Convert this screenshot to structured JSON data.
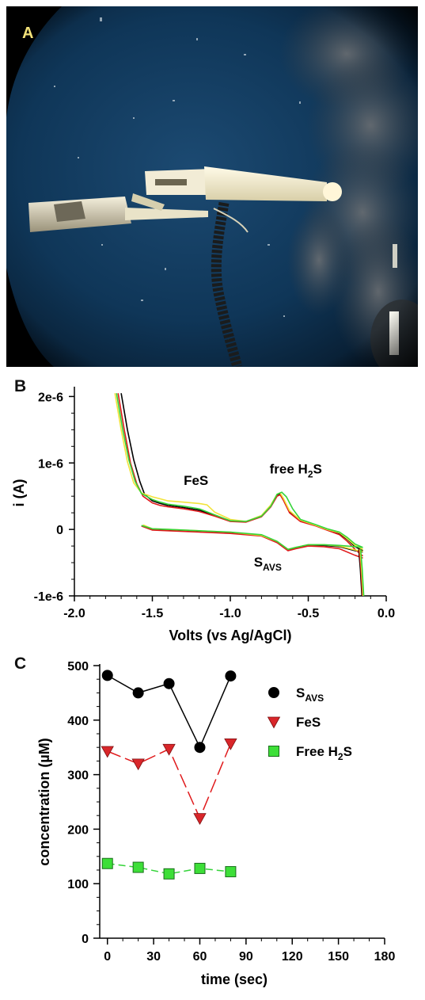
{
  "panels": {
    "a": {
      "letter": "A"
    },
    "b": {
      "letter": "B"
    },
    "c": {
      "letter": "C"
    }
  },
  "colors": {
    "ocean": "#0f3658",
    "ocean_dark": "#071a2c",
    "vignette": "#000000",
    "panel_a_letter": "#f3e27a",
    "black": "#000000",
    "red": "#e0191b",
    "yellow": "#f2e33a",
    "green": "#35d43a",
    "fes_marker": "#d9262a",
    "h2s_marker": "#3ddf38"
  },
  "chart_data": [
    {
      "id": "B",
      "type": "line",
      "xlabel": "Volts (vs Ag/AgCl)",
      "ylabel": "i (A)",
      "xlim": [
        -2.0,
        0.0
      ],
      "ylim": [
        -1e-06,
        2.1e-06
      ],
      "x_ticks": [
        -2.0,
        -1.5,
        -1.0,
        -0.5,
        0.0
      ],
      "x_tick_labels": [
        "-2.0",
        "-1.5",
        "-1.0",
        "-0.5",
        "0.0"
      ],
      "y_ticks": [
        -1e-06,
        0,
        1e-06,
        2e-06
      ],
      "y_tick_labels": [
        "-1e-6",
        "0",
        "1e-6",
        "2e-6"
      ],
      "grid": false,
      "legend": "none",
      "annotations": [
        {
          "text": "FeS",
          "x": -1.22,
          "y": 6.7e-07
        },
        {
          "text": "free H",
          "sub": "2",
          "tail": "S",
          "x": -0.58,
          "y": 8.4e-07
        },
        {
          "text": "S",
          "sub": "AVS",
          "x": -0.76,
          "y": -5.6e-07
        }
      ],
      "series": [
        {
          "color": "black",
          "forward": [
            [
              -1.7,
              2.05e-06
            ],
            [
              -1.66,
              1.5e-06
            ],
            [
              -1.62,
              1.05e-06
            ],
            [
              -1.58,
              7.2e-07
            ],
            [
              -1.55,
              5.3e-07
            ],
            [
              -1.5,
              4.3e-07
            ],
            [
              -1.45,
              3.9e-07
            ],
            [
              -1.4,
              3.6e-07
            ],
            [
              -1.3,
              3.3e-07
            ],
            [
              -1.2,
              2.9e-07
            ],
            [
              -1.1,
              2.1e-07
            ],
            [
              -1.0,
              1.3e-07
            ],
            [
              -0.9,
              1.2e-07
            ],
            [
              -0.8,
              2e-07
            ],
            [
              -0.74,
              3.6e-07
            ],
            [
              -0.7,
              5.2e-07
            ],
            [
              -0.68,
              5.4e-07
            ],
            [
              -0.66,
              4.6e-07
            ],
            [
              -0.62,
              2.7e-07
            ],
            [
              -0.55,
              1.3e-07
            ],
            [
              -0.45,
              6e-08
            ],
            [
              -0.38,
              0
            ],
            [
              -0.3,
              -6e-08
            ],
            [
              -0.25,
              -1.5e-07
            ],
            [
              -0.2,
              -2.6e-07
            ],
            [
              -0.15,
              -3.2e-07
            ]
          ],
          "reverse": [
            [
              -0.15,
              -3.4e-07
            ],
            [
              -0.2,
              -3.2e-07
            ],
            [
              -0.3,
              -2.6e-07
            ],
            [
              -0.4,
              -2.4e-07
            ],
            [
              -0.5,
              -2.4e-07
            ],
            [
              -0.58,
              -2.8e-07
            ],
            [
              -0.63,
              -3.1e-07
            ],
            [
              -0.7,
              -1.9e-07
            ],
            [
              -0.8,
              -9e-08
            ],
            [
              -1.0,
              -5e-08
            ],
            [
              -1.2,
              -3e-08
            ],
            [
              -1.4,
              -1e-08
            ],
            [
              -1.5,
              0.0
            ],
            [
              -1.56,
              6e-08
            ]
          ]
        },
        {
          "color": "red",
          "forward": [
            [
              -1.72,
              2.05e-06
            ],
            [
              -1.68,
              1.5e-06
            ],
            [
              -1.64,
              1e-06
            ],
            [
              -1.6,
              6.9e-07
            ],
            [
              -1.56,
              5e-07
            ],
            [
              -1.5,
              4e-07
            ],
            [
              -1.45,
              3.6e-07
            ],
            [
              -1.4,
              3.4e-07
            ],
            [
              -1.3,
              3.1e-07
            ],
            [
              -1.2,
              2.7e-07
            ],
            [
              -1.1,
              2e-07
            ],
            [
              -1.0,
              1.2e-07
            ],
            [
              -0.9,
              1.1e-07
            ],
            [
              -0.8,
              1.9e-07
            ],
            [
              -0.74,
              3.4e-07
            ],
            [
              -0.7,
              5e-07
            ],
            [
              -0.68,
              5.2e-07
            ],
            [
              -0.66,
              4.4e-07
            ],
            [
              -0.62,
              2.5e-07
            ],
            [
              -0.55,
              1.2e-07
            ],
            [
              -0.45,
              5e-08
            ],
            [
              -0.38,
              -1e-08
            ],
            [
              -0.3,
              -8e-08
            ],
            [
              -0.25,
              -1.8e-07
            ],
            [
              -0.2,
              -3e-07
            ],
            [
              -0.15,
              -4e-07
            ]
          ],
          "reverse": [
            [
              -0.15,
              -4.3e-07
            ],
            [
              -0.2,
              -3.9e-07
            ],
            [
              -0.3,
              -2.9e-07
            ],
            [
              -0.4,
              -2.6e-07
            ],
            [
              -0.5,
              -2.5e-07
            ],
            [
              -0.58,
              -2.9e-07
            ],
            [
              -0.63,
              -3.2e-07
            ],
            [
              -0.7,
              -2e-07
            ],
            [
              -0.8,
              -1e-07
            ],
            [
              -1.0,
              -6e-08
            ],
            [
              -1.2,
              -4e-08
            ],
            [
              -1.4,
              -2e-08
            ],
            [
              -1.5,
              -1e-08
            ],
            [
              -1.57,
              5e-08
            ]
          ]
        },
        {
          "color": "yellow",
          "forward": [
            [
              -1.74,
              2.05e-06
            ],
            [
              -1.7,
              1.5e-06
            ],
            [
              -1.66,
              1.02e-06
            ],
            [
              -1.62,
              7e-07
            ],
            [
              -1.57,
              5.5e-07
            ],
            [
              -1.5,
              4.9e-07
            ],
            [
              -1.45,
              4.6e-07
            ],
            [
              -1.4,
              4.3e-07
            ],
            [
              -1.3,
              4.1e-07
            ],
            [
              -1.2,
              3.9e-07
            ],
            [
              -1.15,
              3.7e-07
            ],
            [
              -1.1,
              2.6e-07
            ],
            [
              -1.0,
              1.5e-07
            ],
            [
              -0.9,
              1.2e-07
            ],
            [
              -0.8,
              2.1e-07
            ],
            [
              -0.74,
              3.7e-07
            ],
            [
              -0.7,
              5.3e-07
            ],
            [
              -0.68,
              5.5e-07
            ],
            [
              -0.66,
              4.7e-07
            ],
            [
              -0.62,
              2.8e-07
            ],
            [
              -0.55,
              1.4e-07
            ],
            [
              -0.45,
              6e-08
            ],
            [
              -0.38,
              0
            ],
            [
              -0.3,
              -5e-08
            ],
            [
              -0.25,
              -1.4e-07
            ],
            [
              -0.2,
              -2.4e-07
            ],
            [
              -0.15,
              -3e-07
            ]
          ],
          "reverse": [
            [
              -0.15,
              -3.3e-07
            ],
            [
              -0.2,
              -3.1e-07
            ],
            [
              -0.3,
              -2.5e-07
            ],
            [
              -0.4,
              -2.3e-07
            ],
            [
              -0.5,
              -2.3e-07
            ],
            [
              -0.58,
              -2.7e-07
            ],
            [
              -0.63,
              -3e-07
            ],
            [
              -0.7,
              -1.8e-07
            ],
            [
              -0.8,
              -9e-08
            ],
            [
              -1.0,
              -4e-08
            ],
            [
              -1.2,
              -2e-08
            ],
            [
              -1.4,
              0
            ],
            [
              -1.5,
              1e-08
            ],
            [
              -1.56,
              7e-08
            ]
          ]
        },
        {
          "color": "green",
          "forward": [
            [
              -1.73,
              2.05e-06
            ],
            [
              -1.69,
              1.5e-06
            ],
            [
              -1.65,
              1.04e-06
            ],
            [
              -1.61,
              7.2e-07
            ],
            [
              -1.57,
              5.4e-07
            ],
            [
              -1.5,
              4.5e-07
            ],
            [
              -1.45,
              4.1e-07
            ],
            [
              -1.4,
              3.8e-07
            ],
            [
              -1.3,
              3.5e-07
            ],
            [
              -1.2,
              3.1e-07
            ],
            [
              -1.1,
              2.2e-07
            ],
            [
              -1.0,
              1.3e-07
            ],
            [
              -0.9,
              1.2e-07
            ],
            [
              -0.8,
              2e-07
            ],
            [
              -0.74,
              3.5e-07
            ],
            [
              -0.7,
              5.3e-07
            ],
            [
              -0.67,
              5.6e-07
            ],
            [
              -0.64,
              4.9e-07
            ],
            [
              -0.6,
              3.1e-07
            ],
            [
              -0.55,
              1.5e-07
            ],
            [
              -0.45,
              7e-08
            ],
            [
              -0.38,
              1e-08
            ],
            [
              -0.3,
              -4e-08
            ],
            [
              -0.25,
              -1.2e-07
            ],
            [
              -0.2,
              -2.2e-07
            ],
            [
              -0.15,
              -2.7e-07
            ]
          ],
          "reverse": [
            [
              -0.15,
              -2.7e-07
            ],
            [
              -0.2,
              -2.6e-07
            ],
            [
              -0.3,
              -2.4e-07
            ],
            [
              -0.4,
              -2.3e-07
            ],
            [
              -0.5,
              -2.3e-07
            ],
            [
              -0.58,
              -2.7e-07
            ],
            [
              -0.63,
              -3e-07
            ],
            [
              -0.7,
              -1.8e-07
            ],
            [
              -0.8,
              -8e-08
            ],
            [
              -1.0,
              -4e-08
            ],
            [
              -1.2,
              -2e-08
            ],
            [
              -1.4,
              0
            ],
            [
              -1.5,
              1e-08
            ],
            [
              -1.57,
              6e-08
            ]
          ]
        }
      ],
      "cathodic_tail": [
        [
          -0.17,
          -3e-07
        ],
        [
          -0.16,
          -6e-07
        ],
        [
          -0.155,
          -8e-07
        ],
        [
          -0.15,
          -1e-06
        ]
      ]
    },
    {
      "id": "C",
      "type": "scatter",
      "xlabel": "time (sec)",
      "ylabel": "concentration (µM)",
      "xlim": [
        -5,
        180
      ],
      "ylim": [
        0,
        500
      ],
      "x_ticks": [
        0,
        30,
        60,
        90,
        120,
        150,
        180
      ],
      "y_ticks": [
        0,
        100,
        200,
        300,
        400,
        500
      ],
      "grid": false,
      "legend": "top-right",
      "series": [
        {
          "name": "S",
          "name_sub": "AVS",
          "marker": "circle",
          "line": "solid",
          "color": "black",
          "x": [
            0,
            20,
            40,
            60,
            80
          ],
          "y": [
            482,
            450,
            467,
            350,
            481
          ]
        },
        {
          "name": "FeS",
          "marker": "triangle-down",
          "line": "long-dash",
          "color": "red",
          "x": [
            0,
            20,
            40,
            60,
            80
          ],
          "y": [
            343,
            320,
            347,
            220,
            357
          ]
        },
        {
          "name": "Free H",
          "name_sub": "2",
          "name_tail": "S",
          "marker": "square",
          "line": "dash",
          "color": "green",
          "x": [
            0,
            20,
            40,
            60,
            80
          ],
          "y": [
            137,
            130,
            118,
            128,
            122
          ]
        }
      ]
    }
  ]
}
